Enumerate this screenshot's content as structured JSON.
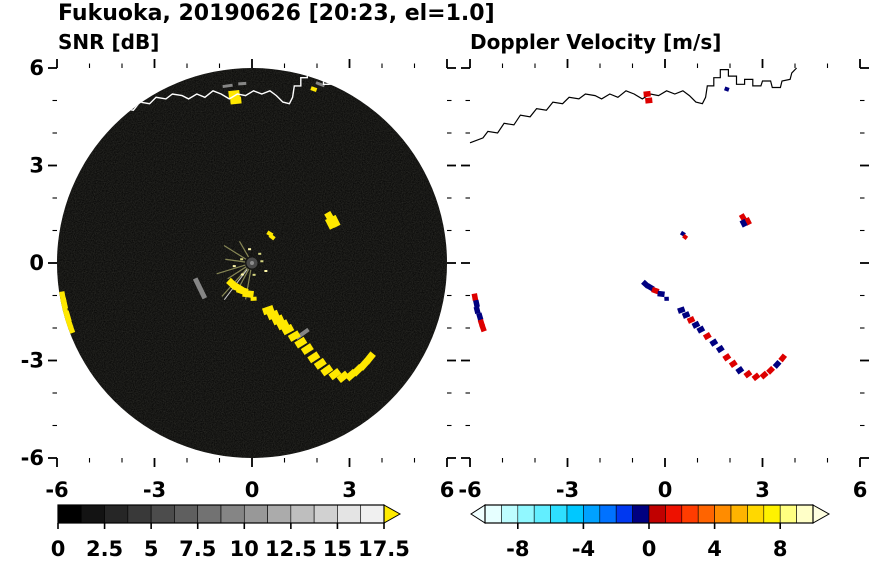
{
  "title": "Fukuoka, 20190626 [20:23, el=1.0]",
  "panels": {
    "snr": {
      "subtitle": "SNR [dB]"
    },
    "vel": {
      "subtitle": "Doppler Velocity [m/s]"
    }
  },
  "axes": {
    "range": [
      -6,
      6
    ],
    "major_ticks": [
      -6,
      -3,
      0,
      3,
      6
    ],
    "tick_labels": [
      "-6",
      "-3",
      "0",
      "3",
      "6"
    ],
    "minor_every": 1
  },
  "colorbars": {
    "snr": {
      "range": [
        0,
        17.5
      ],
      "tick_values": [
        0,
        2.5,
        5,
        7.5,
        10,
        12.5,
        15,
        17.5
      ],
      "tick_labels": [
        "0",
        "2.5",
        "5",
        "7.5",
        "10",
        "12.5",
        "15",
        "17.5"
      ],
      "segment_colors": [
        "#000000",
        "#131313",
        "#262626",
        "#393939",
        "#4c4c4c",
        "#5f5f5f",
        "#727272",
        "#858585",
        "#989898",
        "#ababab",
        "#bebebe",
        "#d1d1d1",
        "#e4e4e4",
        "#f0f0f0"
      ],
      "over_arrow_color": "#ffeb00"
    },
    "vel": {
      "range": [
        -10,
        10
      ],
      "tick_values": [
        -8,
        -4,
        0,
        4,
        8
      ],
      "tick_labels": [
        "-8",
        "-4",
        "0",
        "4",
        "8"
      ],
      "segment_colors": [
        "#e6ffff",
        "#bdfdff",
        "#91f8ff",
        "#62eeff",
        "#2edfff",
        "#00c8ff",
        "#00a2ff",
        "#0072ff",
        "#0038f0",
        "#000080",
        "#c00000",
        "#ee1100",
        "#ff3c00",
        "#ff6400",
        "#ff8c00",
        "#ffb400",
        "#ffd800",
        "#fff200",
        "#ffff80",
        "#ffffc8"
      ],
      "under_arrow_color": "#f0ffff",
      "over_arrow_color": "#ffffe0"
    }
  },
  "echo_style": {
    "snr_color": "#ffe800",
    "neg_color": "#000080",
    "pos_color": "#dd0000",
    "disk_color": "#000000",
    "coast_color_snr": "#ffffff",
    "coast_color_vel": "#000000"
  },
  "map": {
    "coastline_xy": [
      [
        -6.0,
        3.7
      ],
      [
        -5.6,
        3.85
      ],
      [
        -5.45,
        4.05
      ],
      [
        -5.15,
        4.0
      ],
      [
        -4.95,
        4.3
      ],
      [
        -4.65,
        4.25
      ],
      [
        -4.45,
        4.55
      ],
      [
        -4.15,
        4.5
      ],
      [
        -3.95,
        4.75
      ],
      [
        -3.65,
        4.7
      ],
      [
        -3.45,
        4.95
      ],
      [
        -3.15,
        4.9
      ],
      [
        -2.95,
        5.1
      ],
      [
        -2.65,
        5.05
      ],
      [
        -2.45,
        5.2
      ],
      [
        -2.15,
        5.15
      ],
      [
        -1.95,
        5.05
      ],
      [
        -1.7,
        5.2
      ],
      [
        -1.45,
        5.1
      ],
      [
        -1.2,
        5.3
      ],
      [
        -0.95,
        5.2
      ],
      [
        -0.7,
        5.05
      ],
      [
        -0.45,
        5.2
      ],
      [
        -0.2,
        5.15
      ],
      [
        0.05,
        5.3
      ],
      [
        0.3,
        5.2
      ],
      [
        0.55,
        5.3
      ],
      [
        0.75,
        5.15
      ],
      [
        0.95,
        4.95
      ],
      [
        1.15,
        4.9
      ],
      [
        1.25,
        5.1
      ],
      [
        1.3,
        5.45
      ],
      [
        1.5,
        5.45
      ],
      [
        1.5,
        5.7
      ],
      [
        1.7,
        5.7
      ],
      [
        1.7,
        5.95
      ],
      [
        1.95,
        5.95
      ],
      [
        1.95,
        5.75
      ],
      [
        2.2,
        5.75
      ],
      [
        2.2,
        5.5
      ],
      [
        2.45,
        5.5
      ],
      [
        2.45,
        5.65
      ],
      [
        2.7,
        5.65
      ],
      [
        2.7,
        5.45
      ],
      [
        2.95,
        5.45
      ],
      [
        3.0,
        5.6
      ],
      [
        3.25,
        5.6
      ],
      [
        3.3,
        5.4
      ],
      [
        3.55,
        5.4
      ],
      [
        3.6,
        5.6
      ],
      [
        3.85,
        5.65
      ],
      [
        3.9,
        5.85
      ],
      [
        4.05,
        6.0
      ]
    ]
  },
  "chart_data": [
    {
      "type": "heatmap",
      "panel": "left",
      "title": "SNR [dB]",
      "xlim": [
        -6,
        6
      ],
      "ylim": [
        -6,
        6
      ],
      "xticks": [
        -6,
        -3,
        0,
        3,
        6
      ],
      "yticks": [
        -6,
        -3,
        0,
        3,
        6
      ],
      "background_disk": {
        "center": [
          0,
          0
        ],
        "radius": 6,
        "color": "#000000"
      },
      "colorbar": {
        "range": [
          0,
          17.5
        ],
        "tick_values": [
          0,
          2.5,
          5,
          7.5,
          10,
          12.5,
          15,
          17.5
        ],
        "n_segments": 14,
        "over_color": "#ffeb00"
      },
      "echo_note": "bright yellow cells (SNR above 17.5 dB) at the same x,y locations as the points listed in the velocity chart"
    },
    {
      "type": "heatmap",
      "panel": "right",
      "title": "Doppler Velocity [m/s]",
      "xlim": [
        -6,
        6
      ],
      "ylim": [
        -6,
        6
      ],
      "xticks": [
        -6,
        -3,
        0,
        3,
        6
      ],
      "yticks": [
        -6,
        -3,
        0,
        3,
        6
      ],
      "colorbar": {
        "range": [
          -10,
          10
        ],
        "tick_values": [
          -8,
          -4,
          0,
          4,
          8
        ]
      },
      "points": [
        [
          -5.85,
          -1.05,
          3
        ],
        [
          -5.8,
          -1.25,
          -3
        ],
        [
          -5.78,
          -1.45,
          -4
        ],
        [
          -5.7,
          -1.65,
          -3
        ],
        [
          -5.65,
          -1.85,
          4
        ],
        [
          -5.6,
          -2.0,
          3
        ],
        [
          -0.6,
          -0.65,
          -3
        ],
        [
          -0.45,
          -0.75,
          -3
        ],
        [
          -0.3,
          -0.85,
          3
        ],
        [
          -0.12,
          -0.95,
          -3
        ],
        [
          0.05,
          -1.1,
          -2
        ],
        [
          0.5,
          -1.45,
          -3
        ],
        [
          0.65,
          -1.6,
          -3
        ],
        [
          0.8,
          -1.75,
          3
        ],
        [
          0.95,
          -1.9,
          -3
        ],
        [
          1.1,
          -2.05,
          -3
        ],
        [
          1.3,
          -2.25,
          3
        ],
        [
          1.5,
          -2.45,
          -3
        ],
        [
          1.7,
          -2.65,
          -3
        ],
        [
          1.9,
          -2.9,
          3
        ],
        [
          2.1,
          -3.1,
          4
        ],
        [
          2.3,
          -3.3,
          -3
        ],
        [
          2.55,
          -3.42,
          3
        ],
        [
          2.8,
          -3.5,
          4
        ],
        [
          3.05,
          -3.45,
          3
        ],
        [
          3.25,
          -3.3,
          3
        ],
        [
          3.45,
          -3.12,
          -3
        ],
        [
          3.62,
          -2.92,
          3
        ],
        [
          2.4,
          1.4,
          4
        ],
        [
          2.55,
          1.28,
          3
        ],
        [
          2.42,
          1.22,
          -3
        ],
        [
          -0.55,
          5.2,
          3
        ],
        [
          -0.5,
          5.0,
          3
        ],
        [
          1.9,
          5.35,
          -2
        ],
        [
          0.55,
          0.9,
          -2
        ],
        [
          0.62,
          0.8,
          2
        ]
      ]
    }
  ]
}
